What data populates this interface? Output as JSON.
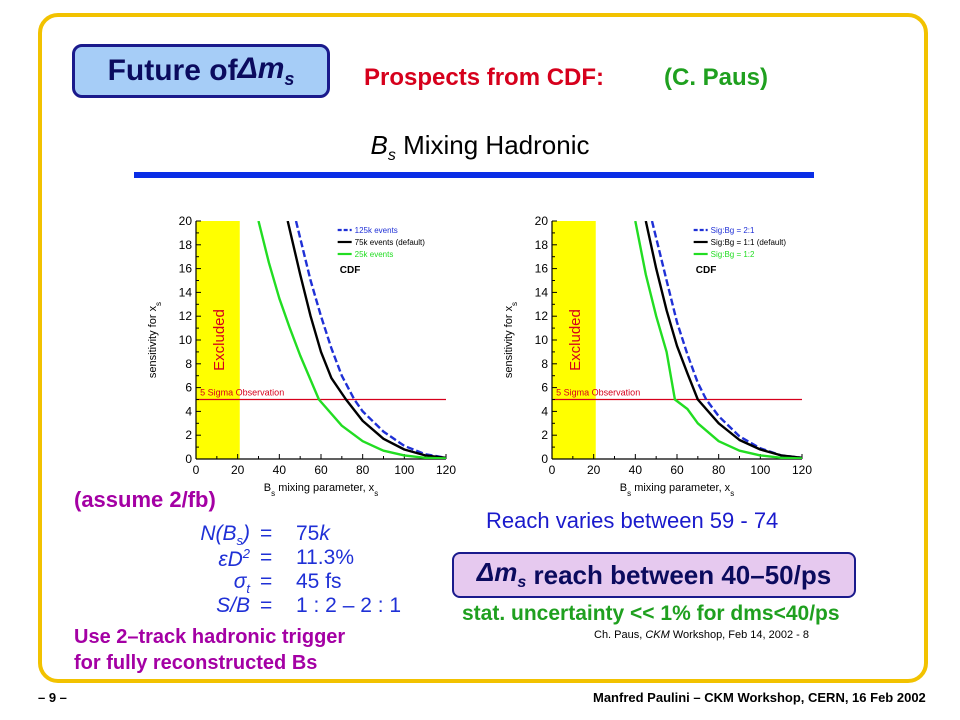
{
  "header": {
    "title_prefix": "Future of ",
    "title_symbol": "Δm",
    "title_sub": "s",
    "prospects": "Prospects from CDF:",
    "author": "(C. Paus)"
  },
  "subtitle": {
    "b": "B",
    "sub": "s",
    "rest": " Mixing Hadronic"
  },
  "assumptions": {
    "heading": "(assume 2/fb)",
    "equations": [
      {
        "lhs": "N(B",
        "lhs_sub": "s",
        "lhs_end": ")",
        "op": "=",
        "rhs": "75",
        "rhs_unit": "k"
      },
      {
        "lhs": "εD",
        "lhs_sup": "2",
        "op": "=",
        "rhs": "11.3%"
      },
      {
        "lhs": "σ",
        "lhs_sub": "t",
        "op": "=",
        "rhs": "45 fs"
      },
      {
        "lhs": "S/B",
        "op": "=",
        "rhs": "1 : 2 – 2 : 1"
      }
    ],
    "trigger_line1": "Use 2–track hadronic trigger",
    "trigger_line2": "for fully reconstructed Bs"
  },
  "results": {
    "reach_varies": "Reach varies between 59 - 74",
    "reach_symbol": "Δm",
    "reach_sub": "s",
    "reach_text": " reach between 40–50/ps",
    "stat": "stat. uncertainty << 1% for dms<40/ps",
    "cite_prefix": "Ch. Paus, ",
    "cite_ital": "CKM",
    "cite_suffix": " Workshop, Feb 14, 2002 - 8"
  },
  "footer": {
    "left": "– 9 –",
    "right": "Manfred Paulini – CKM Workshop, CERN, 16 Feb 2002"
  },
  "colors": {
    "frame": "#f2c200",
    "excluded": "#ffff00",
    "sigma_line": "#d6001c",
    "blue": "#1f30d6",
    "black": "#000000",
    "green": "#22dd22"
  },
  "chart_data": [
    {
      "type": "line",
      "xlabel": "B",
      "xlabel_sub": "s",
      "xlabel_rest": " mixing parameter, x",
      "xlabel_sub2": "s",
      "ylabel": "sensitivity for x",
      "ylabel_sub": "s",
      "xlim": [
        0,
        120
      ],
      "ylim": [
        0,
        20
      ],
      "xticks": [
        0,
        20,
        40,
        60,
        80,
        100,
        120
      ],
      "yticks": [
        0,
        2,
        4,
        6,
        8,
        10,
        12,
        14,
        16,
        18,
        20
      ],
      "excluded_region": [
        0,
        21
      ],
      "excluded_label": "Excluded",
      "threshold": {
        "y": 5,
        "label": "5 Sigma Observation"
      },
      "cdf_label": "CDF",
      "legend_position": "top-right",
      "series": [
        {
          "name": "125k events",
          "color": "#1f30d6",
          "dash": true,
          "x": [
            48,
            55,
            60,
            65,
            70,
            76,
            80,
            90,
            100,
            110,
            120
          ],
          "y": [
            20,
            15,
            12,
            9.3,
            7.0,
            5.0,
            4.0,
            2.3,
            1.1,
            0.4,
            0.1
          ]
        },
        {
          "name": "75k events (default)",
          "color": "#000000",
          "dash": false,
          "x": [
            44,
            50,
            55,
            60,
            65,
            72,
            80,
            90,
            100,
            110,
            120
          ],
          "y": [
            20,
            15.5,
            12,
            9.0,
            6.8,
            5.0,
            3.2,
            1.7,
            0.8,
            0.3,
            0.1
          ]
        },
        {
          "name": "25k events",
          "color": "#22dd22",
          "dash": false,
          "x": [
            30,
            35,
            40,
            45,
            50,
            59,
            70,
            80,
            90,
            100,
            110,
            120
          ],
          "y": [
            20,
            16.5,
            13.5,
            11,
            8.7,
            5.0,
            2.8,
            1.5,
            0.7,
            0.3,
            0.1,
            0.05
          ]
        }
      ]
    },
    {
      "type": "line",
      "xlabel": "B",
      "xlabel_sub": "s",
      "xlabel_rest": " mixing parameter, x",
      "xlabel_sub2": "s",
      "ylabel": "sensitivity for x",
      "ylabel_sub": "s",
      "xlim": [
        0,
        120
      ],
      "ylim": [
        0,
        20
      ],
      "xticks": [
        0,
        20,
        40,
        60,
        80,
        100,
        120
      ],
      "yticks": [
        0,
        2,
        4,
        6,
        8,
        10,
        12,
        14,
        16,
        18,
        20
      ],
      "excluded_region": [
        0,
        21
      ],
      "excluded_label": "Excluded",
      "threshold": {
        "y": 5,
        "label": "5 Sigma Observation"
      },
      "cdf_label": "CDF",
      "legend_position": "top-right",
      "series": [
        {
          "name": "Sig:Bg = 2:1",
          "color": "#1f30d6",
          "dash": true,
          "x": [
            48,
            55,
            60,
            65,
            70,
            74,
            80,
            90,
            100,
            110,
            120
          ],
          "y": [
            20,
            15,
            11.5,
            8.8,
            6.4,
            5.0,
            3.6,
            1.9,
            0.9,
            0.3,
            0.1
          ]
        },
        {
          "name": "Sig:Bg = 1:1 (default)",
          "color": "#000000",
          "dash": false,
          "x": [
            45,
            50,
            55,
            60,
            65,
            70,
            80,
            90,
            100,
            110,
            120
          ],
          "y": [
            20,
            16,
            12.5,
            9.5,
            7.2,
            5.0,
            3.0,
            1.6,
            0.8,
            0.3,
            0.1
          ]
        },
        {
          "name": "Sig:Bg = 1:2",
          "color": "#22dd22",
          "dash": false,
          "x": [
            40,
            45,
            50,
            55,
            59,
            65,
            70,
            80,
            90,
            100,
            110,
            120
          ],
          "y": [
            20,
            15.5,
            12,
            9,
            5.0,
            4.2,
            3.0,
            1.5,
            0.7,
            0.3,
            0.1,
            0.05
          ]
        }
      ]
    }
  ]
}
